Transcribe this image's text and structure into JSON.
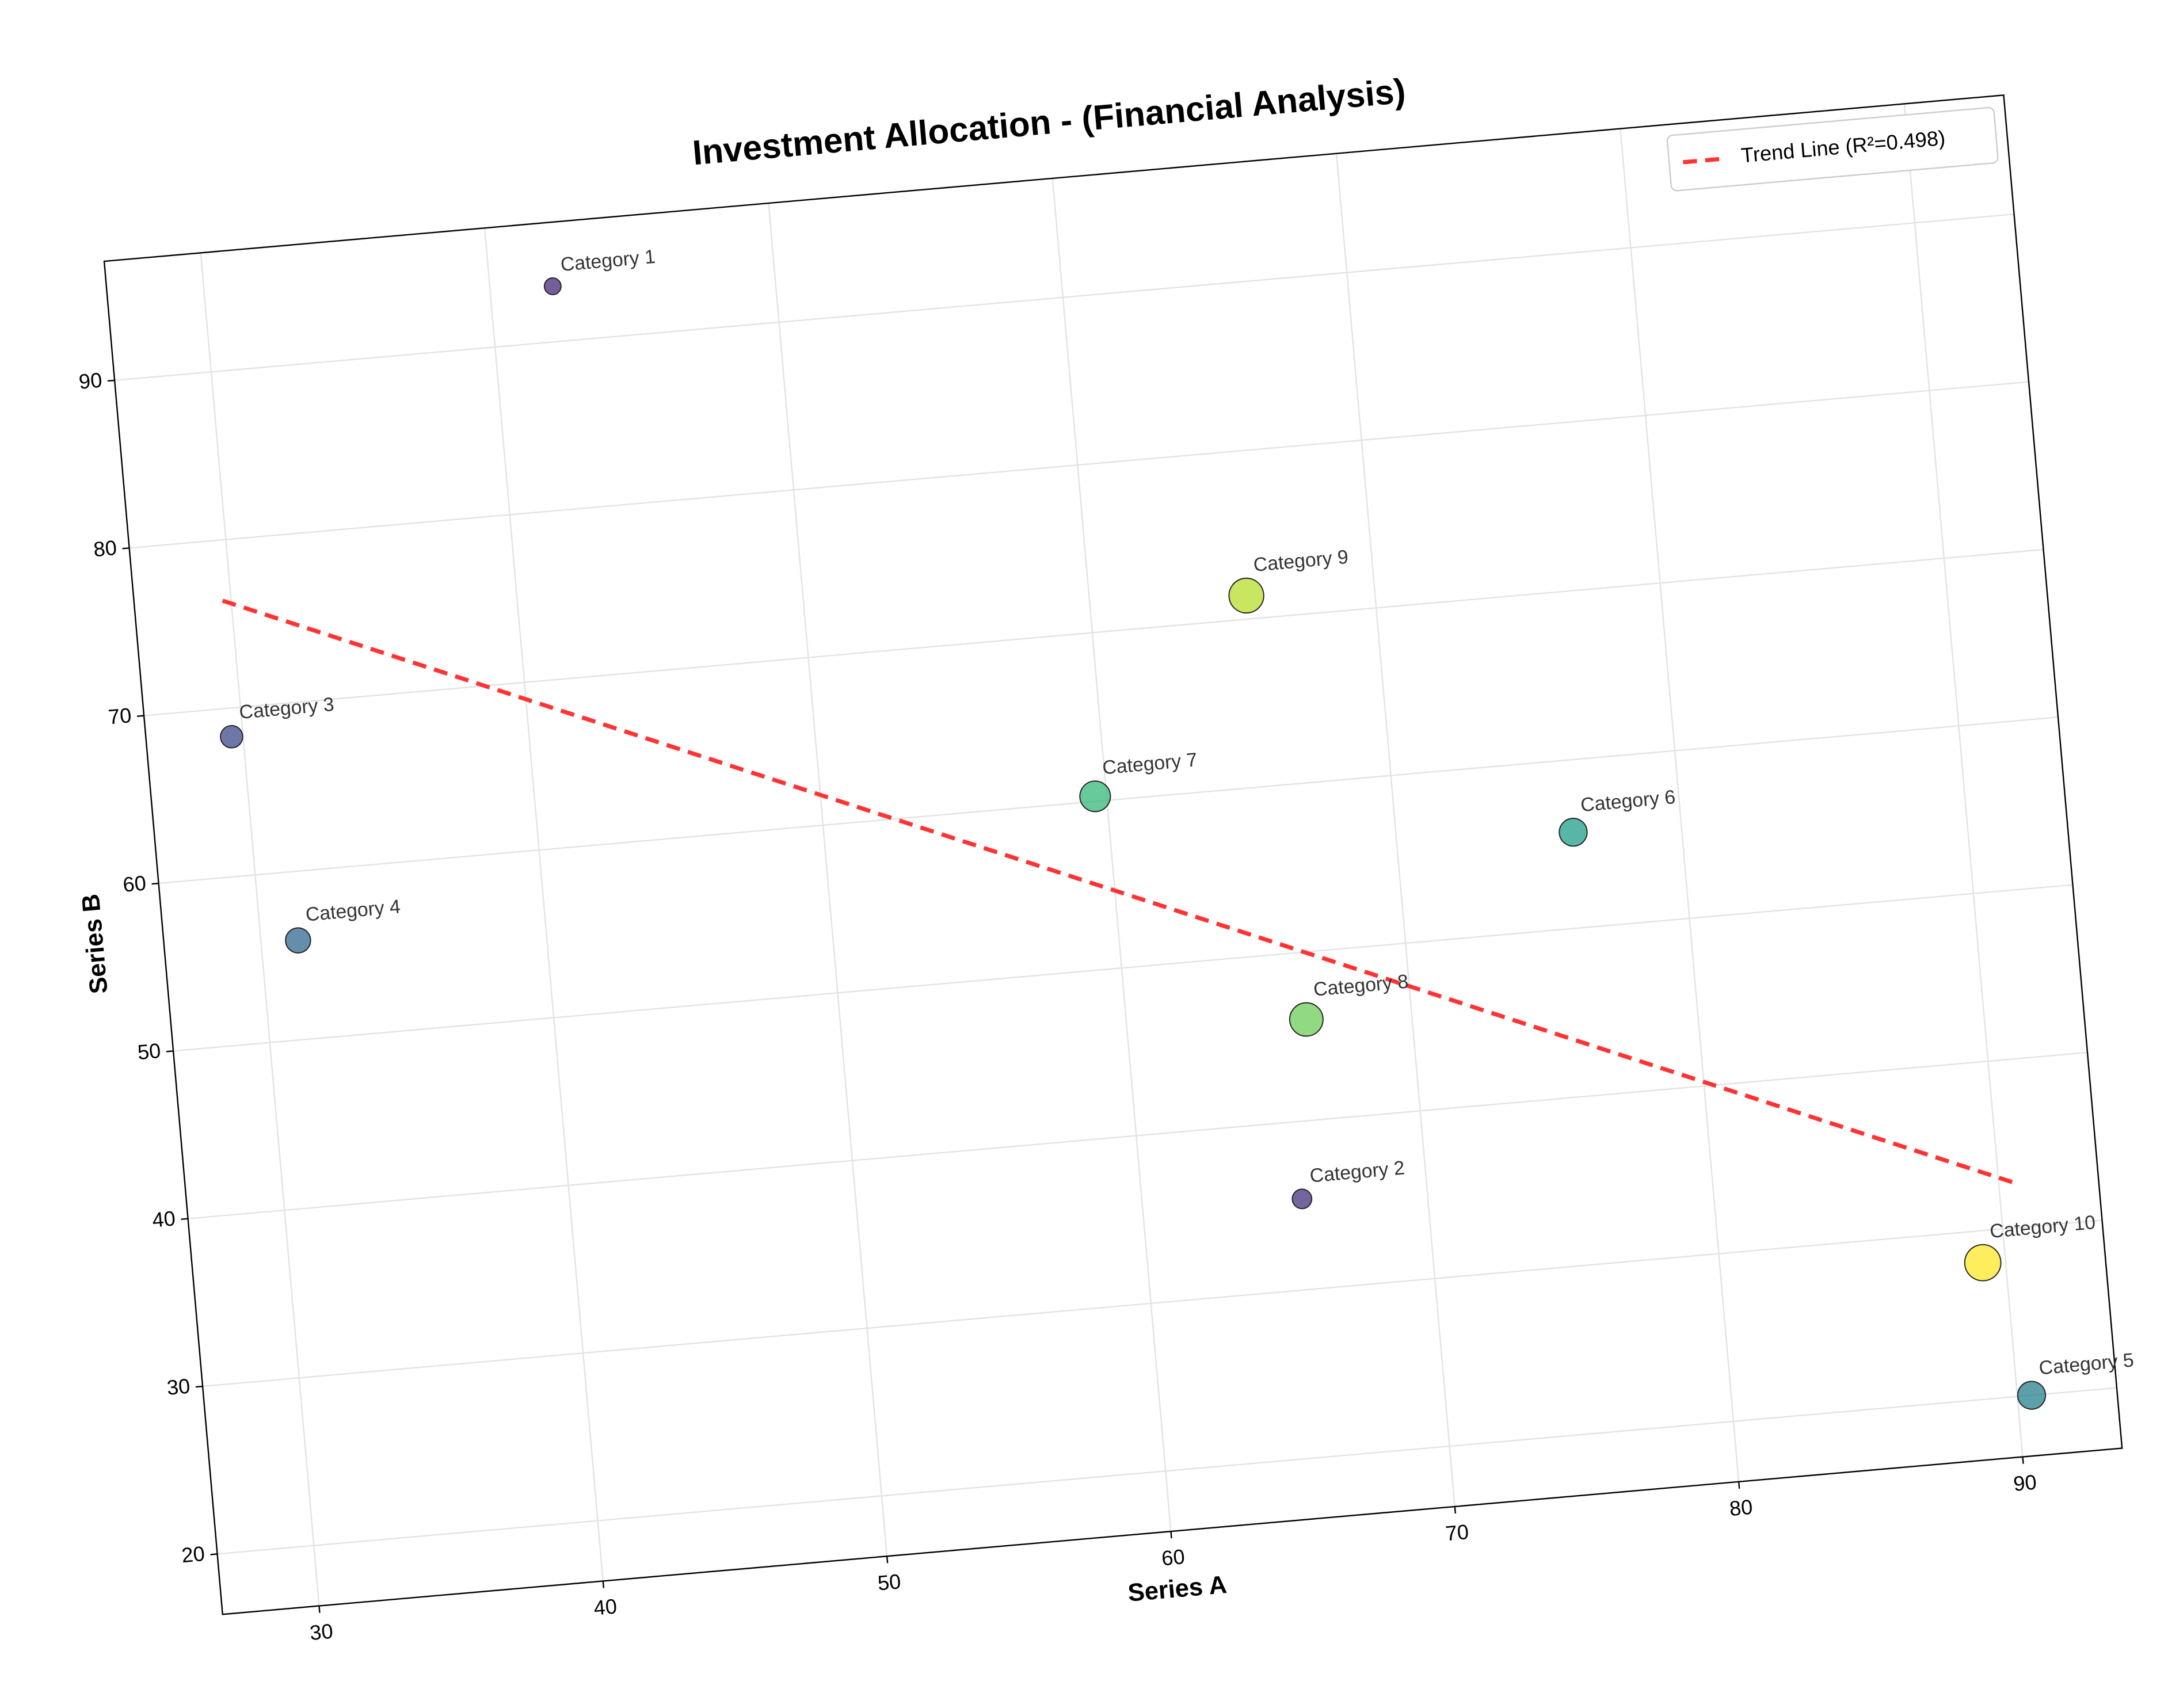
{
  "chart_data": {
    "type": "scatter",
    "title": "Investment Allocation - (Financial Analysis)",
    "x_label": "Series A",
    "y_label": "Series B",
    "categories": [
      "Category 1",
      "Category 2",
      "Category 3",
      "Category 4",
      "Category 5",
      "Category 6",
      "Category 7",
      "Category 8",
      "Category 9",
      "Category 10"
    ],
    "x": [
      42.2,
      65.6,
      29.6,
      31.3,
      90.5,
      76.2,
      59.6,
      66.3,
      65.5,
      89.2
    ],
    "values": [
      93.3,
      35.4,
      68.3,
      55.9,
      20.0,
      55.7,
      60.3,
      46.0,
      71.4,
      28.1
    ],
    "sizes": [
      6,
      7,
      8,
      9,
      10,
      10,
      11,
      12,
      12.5,
      13
    ],
    "colors": [
      "#482878",
      "#46327e",
      "#3e4989",
      "#31688e",
      "#26828e",
      "#1f9e89",
      "#35b779",
      "#6ece58",
      "#b5de2b",
      "#fde725"
    ],
    "trend": {
      "name": "Trend Line (R²=0.498)",
      "color": "#ff3333",
      "x": [
        29.7,
        90.5
      ],
      "values": [
        76.4,
        32.7
      ]
    },
    "xlim": [
      26.6,
      93.5
    ],
    "ylim": [
      16.4,
      97.1
    ],
    "xticks": [
      30,
      40,
      50,
      60,
      70,
      80,
      90
    ],
    "yticks": [
      20,
      30,
      40,
      50,
      60,
      70,
      80,
      90
    ],
    "grid": true,
    "legend": "upper right",
    "rotation": -5
  }
}
